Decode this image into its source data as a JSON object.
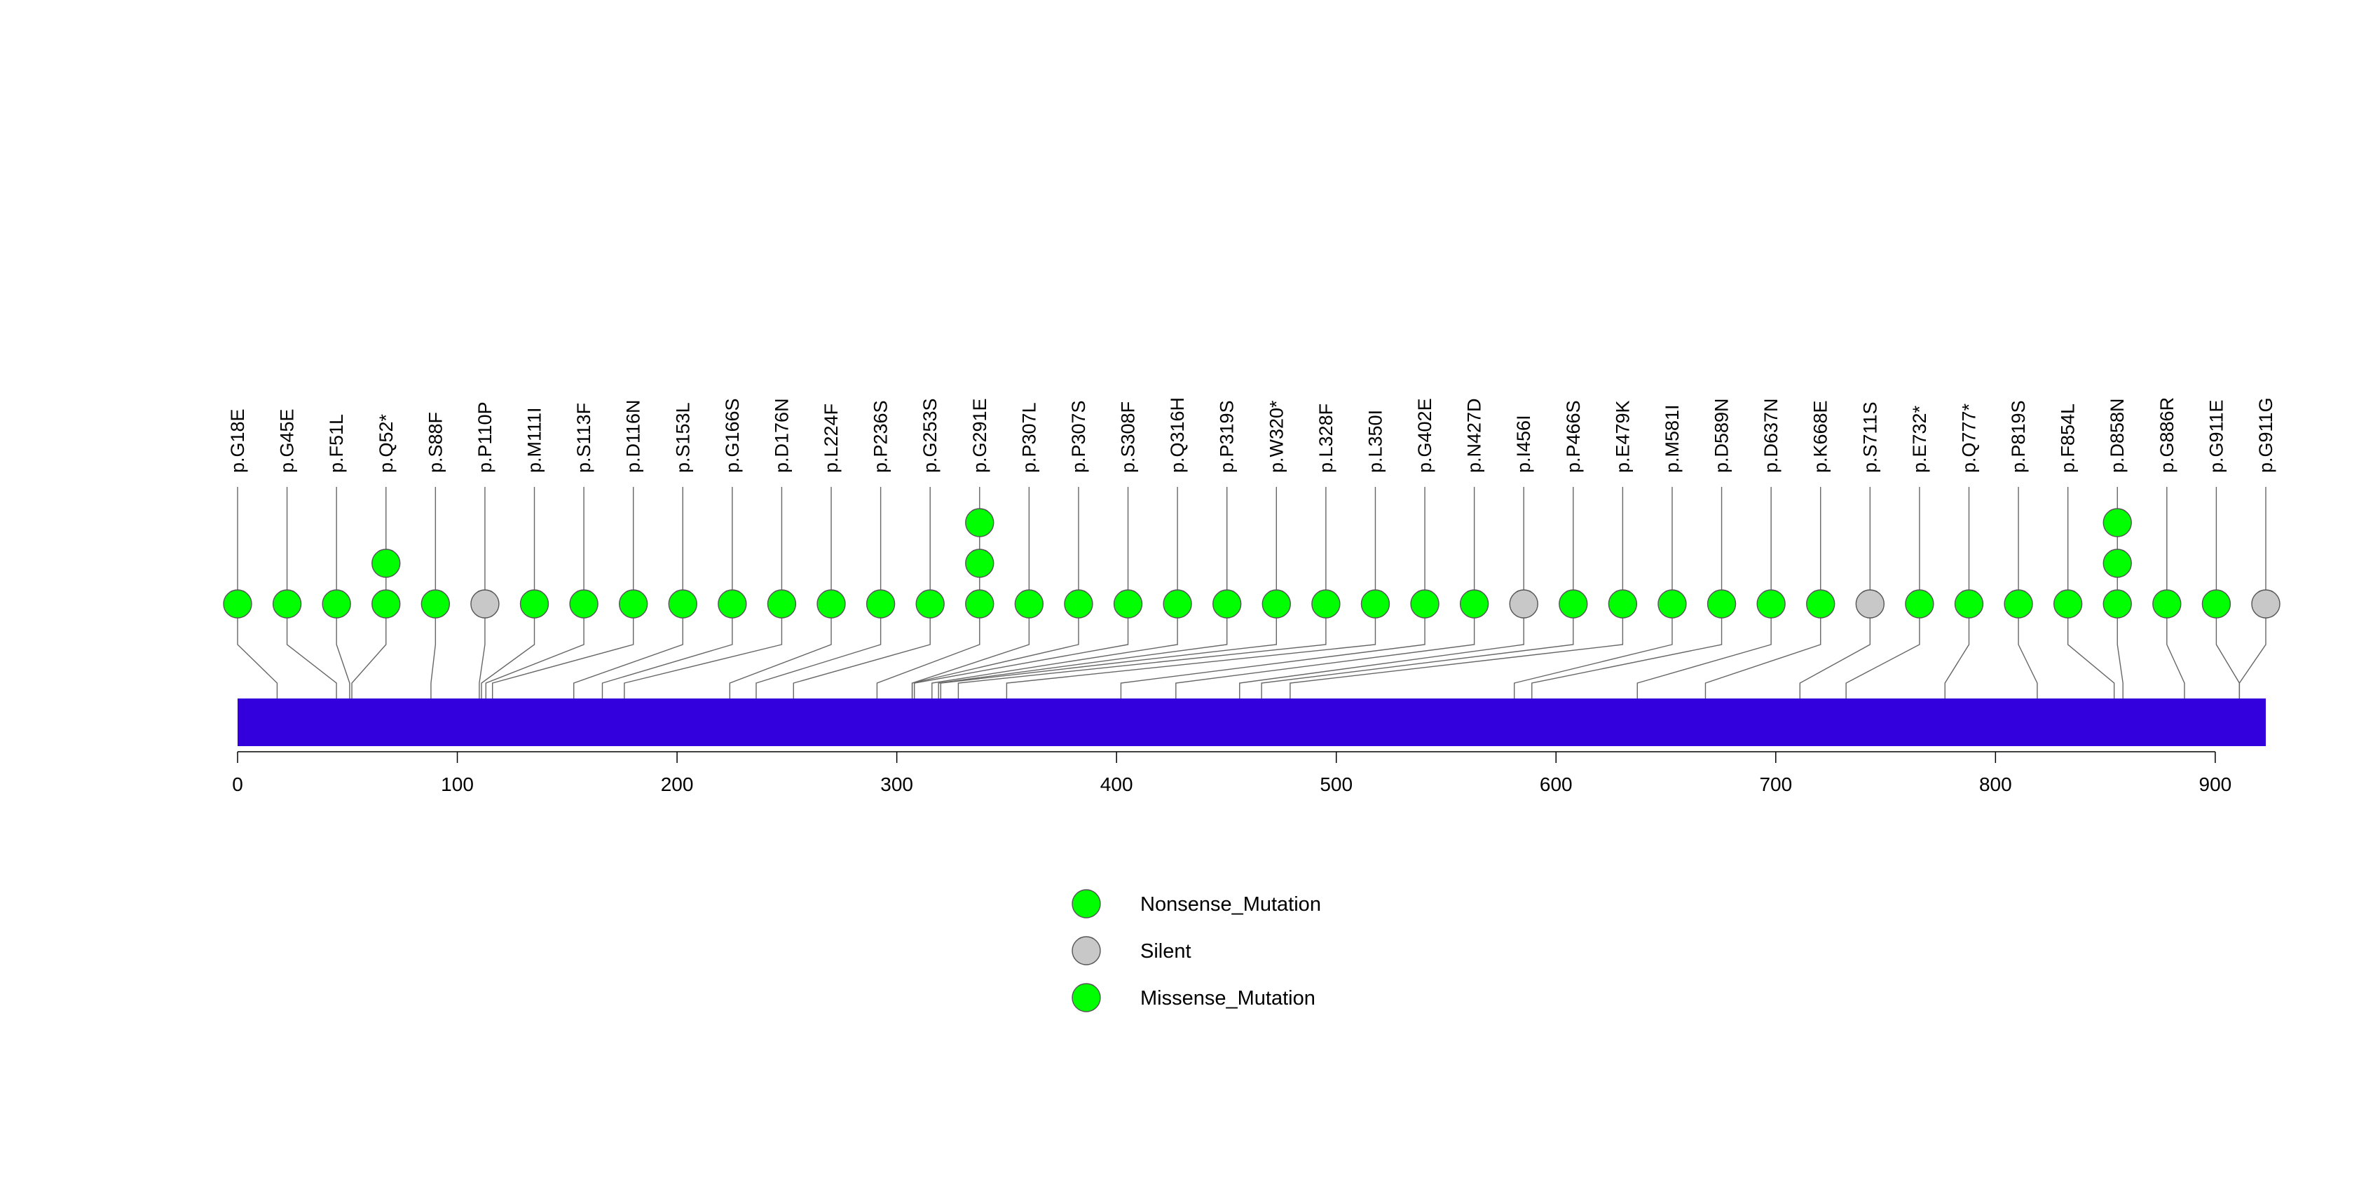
{
  "chart_data": {
    "type": "lollipop",
    "title": "",
    "xlabel": "",
    "ylabel": "",
    "protein_length": 923,
    "xlim": [
      0,
      923
    ],
    "x_ticks": [
      0,
      100,
      200,
      300,
      400,
      500,
      600,
      700,
      800,
      900
    ],
    "bar_color": "#3300DD",
    "legend": [
      {
        "label": "Nonsense_Mutation",
        "color": "#00FF00"
      },
      {
        "label": "Silent",
        "color": "#C8C8C8"
      },
      {
        "label": "Missense_Mutation",
        "color": "#00FF00"
      }
    ],
    "mutations": [
      {
        "label": "p.G18E",
        "position": 18,
        "count": 1,
        "color": "#00FF00"
      },
      {
        "label": "p.G45E",
        "position": 45,
        "count": 1,
        "color": "#00FF00"
      },
      {
        "label": "p.F51L",
        "position": 51,
        "count": 1,
        "color": "#00FF00"
      },
      {
        "label": "p.Q52*",
        "position": 52,
        "count": 2,
        "color": "#00FF00"
      },
      {
        "label": "p.S88F",
        "position": 88,
        "count": 1,
        "color": "#00FF00"
      },
      {
        "label": "p.P110P",
        "position": 110,
        "count": 1,
        "color": "#C8C8C8"
      },
      {
        "label": "p.M111I",
        "position": 111,
        "count": 1,
        "color": "#00FF00"
      },
      {
        "label": "p.S113F",
        "position": 113,
        "count": 1,
        "color": "#00FF00"
      },
      {
        "label": "p.D116N",
        "position": 116,
        "count": 1,
        "color": "#00FF00"
      },
      {
        "label": "p.S153L",
        "position": 153,
        "count": 1,
        "color": "#00FF00"
      },
      {
        "label": "p.G166S",
        "position": 166,
        "count": 1,
        "color": "#00FF00"
      },
      {
        "label": "p.D176N",
        "position": 176,
        "count": 1,
        "color": "#00FF00"
      },
      {
        "label": "p.L224F",
        "position": 224,
        "count": 1,
        "color": "#00FF00"
      },
      {
        "label": "p.P236S",
        "position": 236,
        "count": 1,
        "color": "#00FF00"
      },
      {
        "label": "p.G253S",
        "position": 253,
        "count": 1,
        "color": "#00FF00"
      },
      {
        "label": "p.G291E",
        "position": 291,
        "count": 3,
        "color": "#00FF00"
      },
      {
        "label": "p.P307L",
        "position": 307,
        "count": 1,
        "color": "#00FF00"
      },
      {
        "label": "p.P307S",
        "position": 307,
        "count": 1,
        "color": "#00FF00"
      },
      {
        "label": "p.S308F",
        "position": 308,
        "count": 1,
        "color": "#00FF00"
      },
      {
        "label": "p.Q316H",
        "position": 316,
        "count": 1,
        "color": "#00FF00"
      },
      {
        "label": "p.P319S",
        "position": 319,
        "count": 1,
        "color": "#00FF00"
      },
      {
        "label": "p.W320*",
        "position": 320,
        "count": 1,
        "color": "#00FF00"
      },
      {
        "label": "p.L328F",
        "position": 328,
        "count": 1,
        "color": "#00FF00"
      },
      {
        "label": "p.L350I",
        "position": 350,
        "count": 1,
        "color": "#00FF00"
      },
      {
        "label": "p.G402E",
        "position": 402,
        "count": 1,
        "color": "#00FF00"
      },
      {
        "label": "p.N427D",
        "position": 427,
        "count": 1,
        "color": "#00FF00"
      },
      {
        "label": "p.I456I",
        "position": 456,
        "count": 1,
        "color": "#C8C8C8"
      },
      {
        "label": "p.P466S",
        "position": 466,
        "count": 1,
        "color": "#00FF00"
      },
      {
        "label": "p.E479K",
        "position": 479,
        "count": 1,
        "color": "#00FF00"
      },
      {
        "label": "p.M581I",
        "position": 581,
        "count": 1,
        "color": "#00FF00"
      },
      {
        "label": "p.D589N",
        "position": 589,
        "count": 1,
        "color": "#00FF00"
      },
      {
        "label": "p.D637N",
        "position": 637,
        "count": 1,
        "color": "#00FF00"
      },
      {
        "label": "p.K668E",
        "position": 668,
        "count": 1,
        "color": "#00FF00"
      },
      {
        "label": "p.S711S",
        "position": 711,
        "count": 1,
        "color": "#C8C8C8"
      },
      {
        "label": "p.E732*",
        "position": 732,
        "count": 1,
        "color": "#00FF00"
      },
      {
        "label": "p.Q777*",
        "position": 777,
        "count": 1,
        "color": "#00FF00"
      },
      {
        "label": "p.P819S",
        "position": 819,
        "count": 1,
        "color": "#00FF00"
      },
      {
        "label": "p.F854L",
        "position": 854,
        "count": 1,
        "color": "#00FF00"
      },
      {
        "label": "p.D858N",
        "position": 858,
        "count": 3,
        "color": "#00FF00"
      },
      {
        "label": "p.G886R",
        "position": 886,
        "count": 1,
        "color": "#00FF00"
      },
      {
        "label": "p.G911E",
        "position": 911,
        "count": 1,
        "color": "#00FF00"
      },
      {
        "label": "p.G911G",
        "position": 911,
        "count": 1,
        "color": "#C8C8C8"
      }
    ]
  }
}
